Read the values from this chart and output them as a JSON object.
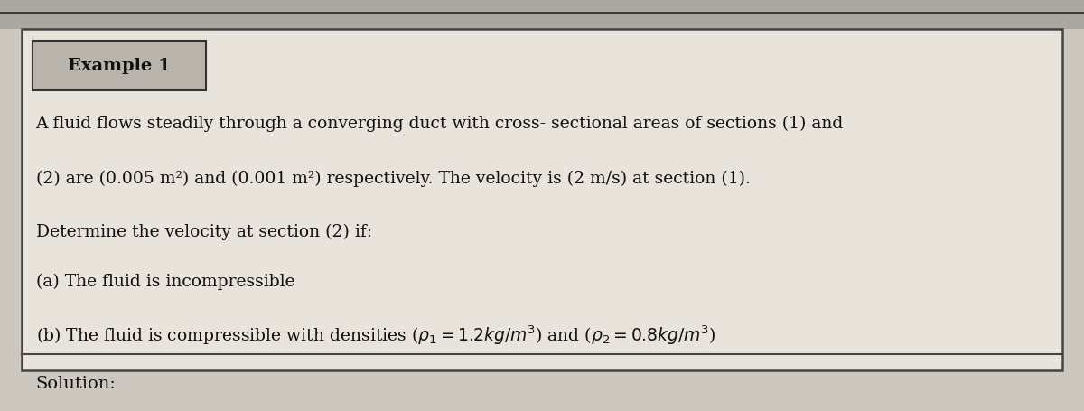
{
  "background_color": "#ccc8c0",
  "box_color": "#e8e4dc",
  "box_edge_color": "#444444",
  "title_box_color": "#b8b4ac",
  "title_box_edge": "#333333",
  "title_text": "Example 1",
  "title_fontsize": 14,
  "body_fontsize": 13.5,
  "solution_fontsize": 14,
  "text_color": "#111111",
  "line1": "A fluid flows steadily through a converging duct with cross- sectional areas of sections (1) and",
  "line2": "(2) are (0.005 m²) and (0.001 m²) respectively. The velocity is (2 m/s) at section (1).",
  "line3": "Determine the velocity at section (2) if:",
  "line4a": "(a) The fluid is incompressible",
  "solution_label": "Solution:"
}
